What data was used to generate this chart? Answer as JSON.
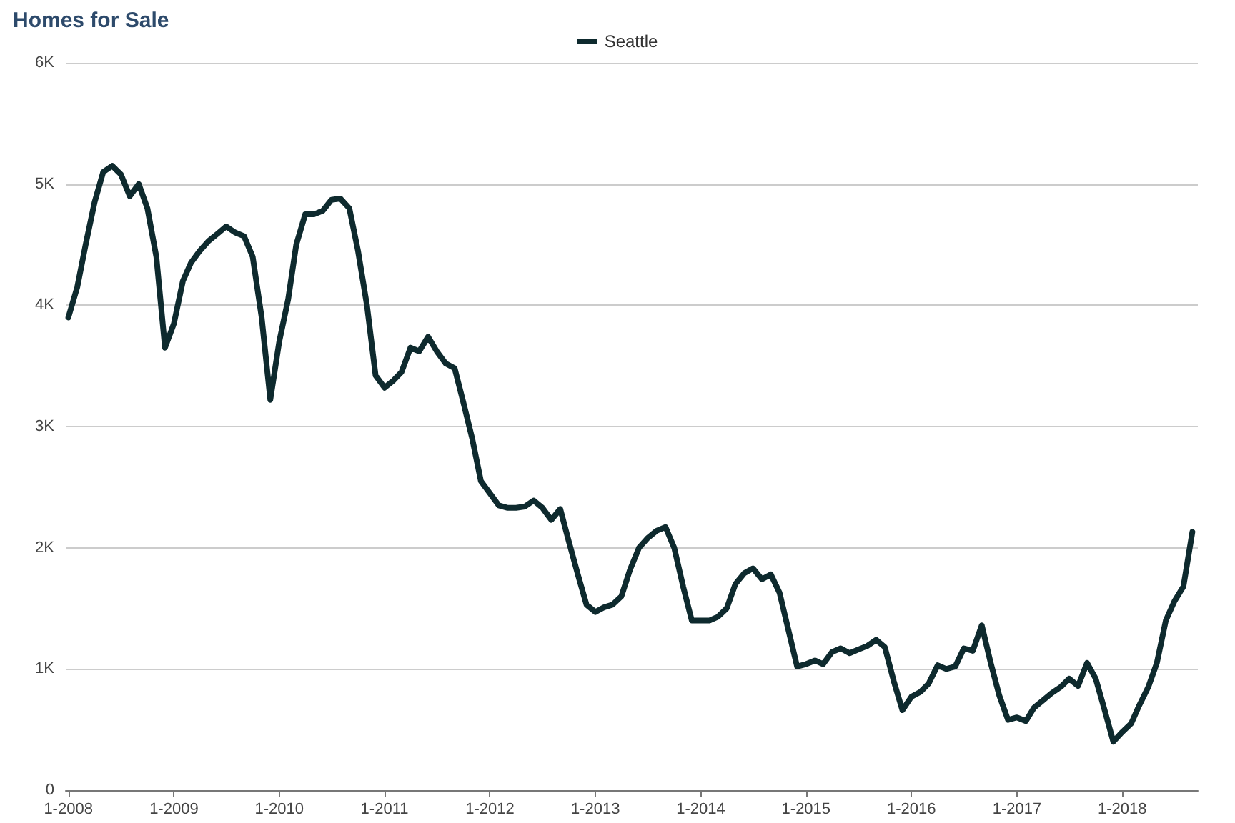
{
  "chart_data": {
    "type": "line",
    "title": "Homes for Sale",
    "x": [
      "2008-01",
      "2008-02",
      "2008-03",
      "2008-04",
      "2008-05",
      "2008-06",
      "2008-07",
      "2008-08",
      "2008-09",
      "2008-10",
      "2008-11",
      "2008-12",
      "2009-01",
      "2009-02",
      "2009-03",
      "2009-04",
      "2009-05",
      "2009-06",
      "2009-07",
      "2009-08",
      "2009-09",
      "2009-10",
      "2009-11",
      "2009-12",
      "2010-01",
      "2010-02",
      "2010-03",
      "2010-04",
      "2010-05",
      "2010-06",
      "2010-07",
      "2010-08",
      "2010-09",
      "2010-10",
      "2010-11",
      "2010-12",
      "2011-01",
      "2011-02",
      "2011-03",
      "2011-04",
      "2011-05",
      "2011-06",
      "2011-07",
      "2011-08",
      "2011-09",
      "2011-10",
      "2011-11",
      "2011-12",
      "2012-01",
      "2012-02",
      "2012-03",
      "2012-04",
      "2012-05",
      "2012-06",
      "2012-07",
      "2012-08",
      "2012-09",
      "2012-10",
      "2012-11",
      "2012-12",
      "2013-01",
      "2013-02",
      "2013-03",
      "2013-04",
      "2013-05",
      "2013-06",
      "2013-07",
      "2013-08",
      "2013-09",
      "2013-10",
      "2013-11",
      "2013-12",
      "2014-01",
      "2014-02",
      "2014-03",
      "2014-04",
      "2014-05",
      "2014-06",
      "2014-07",
      "2014-08",
      "2014-09",
      "2014-10",
      "2014-11",
      "2014-12",
      "2015-01",
      "2015-02",
      "2015-03",
      "2015-04",
      "2015-05",
      "2015-06",
      "2015-07",
      "2015-08",
      "2015-09",
      "2015-10",
      "2015-11",
      "2015-12",
      "2016-01",
      "2016-02",
      "2016-03",
      "2016-04",
      "2016-05",
      "2016-06",
      "2016-07",
      "2016-08",
      "2016-09",
      "2016-10",
      "2016-11",
      "2016-12",
      "2017-01",
      "2017-02",
      "2017-03",
      "2017-04",
      "2017-05",
      "2017-06",
      "2017-07",
      "2017-08",
      "2017-09",
      "2017-10",
      "2017-11",
      "2017-12",
      "2018-01",
      "2018-02",
      "2018-03",
      "2018-04",
      "2018-05",
      "2018-06",
      "2018-07",
      "2018-08",
      "2018-09"
    ],
    "series": [
      {
        "name": "Seattle",
        "color": "#0e2a2e",
        "values": [
          3900,
          4150,
          4500,
          4850,
          5100,
          5150,
          5080,
          4900,
          5000,
          4800,
          4400,
          3650,
          3850,
          4200,
          4350,
          4450,
          4530,
          4590,
          4650,
          4600,
          4570,
          4400,
          3900,
          3220,
          3700,
          4050,
          4500,
          4750,
          4750,
          4780,
          4870,
          4880,
          4800,
          4450,
          4000,
          3420,
          3320,
          3380,
          3450,
          3650,
          3620,
          3740,
          3620,
          3520,
          3480,
          3200,
          2900,
          2550,
          2450,
          2350,
          2330,
          2330,
          2340,
          2390,
          2330,
          2230,
          2320,
          2050,
          1780,
          1530,
          1470,
          1510,
          1530,
          1600,
          1820,
          2000,
          2080,
          2140,
          2170,
          2000,
          1680,
          1400,
          1400,
          1400,
          1430,
          1500,
          1700,
          1790,
          1830,
          1740,
          1780,
          1630,
          1320,
          1020,
          1040,
          1070,
          1040,
          1140,
          1170,
          1130,
          1160,
          1190,
          1240,
          1180,
          900,
          660,
          770,
          810,
          880,
          1030,
          1000,
          1020,
          1170,
          1150,
          1360,
          1060,
          780,
          580,
          600,
          570,
          680,
          740,
          800,
          850,
          920,
          860,
          1050,
          920,
          660,
          400,
          480,
          550,
          700,
          850,
          1050,
          1400,
          1560,
          1680,
          2130
        ]
      }
    ],
    "xlim": [
      "2007-12-23",
      "2018-09-20"
    ],
    "xticks": [
      {
        "value": "2008-01",
        "label": "1-2008"
      },
      {
        "value": "2009-01",
        "label": "1-2009"
      },
      {
        "value": "2010-01",
        "label": "1-2010"
      },
      {
        "value": "2011-01",
        "label": "1-2011"
      },
      {
        "value": "2012-01",
        "label": "1-2012"
      },
      {
        "value": "2013-01",
        "label": "1-2013"
      },
      {
        "value": "2014-01",
        "label": "1-2014"
      },
      {
        "value": "2015-01",
        "label": "1-2015"
      },
      {
        "value": "2016-01",
        "label": "1-2016"
      },
      {
        "value": "2017-01",
        "label": "1-2017"
      },
      {
        "value": "2018-01",
        "label": "1-2018"
      }
    ],
    "ylim": [
      0,
      6000
    ],
    "yticks": [
      0,
      {
        "value": 1000,
        "label": "1K"
      },
      {
        "value": 2000,
        "label": "2K"
      },
      {
        "value": 3000,
        "label": "3K"
      },
      {
        "value": 4000,
        "label": "4K"
      },
      {
        "value": 5000,
        "label": "5K"
      },
      {
        "value": 6000,
        "label": "6K"
      }
    ],
    "grid": "y",
    "legend": "top",
    "marker": "none",
    "line_style": "solid"
  }
}
